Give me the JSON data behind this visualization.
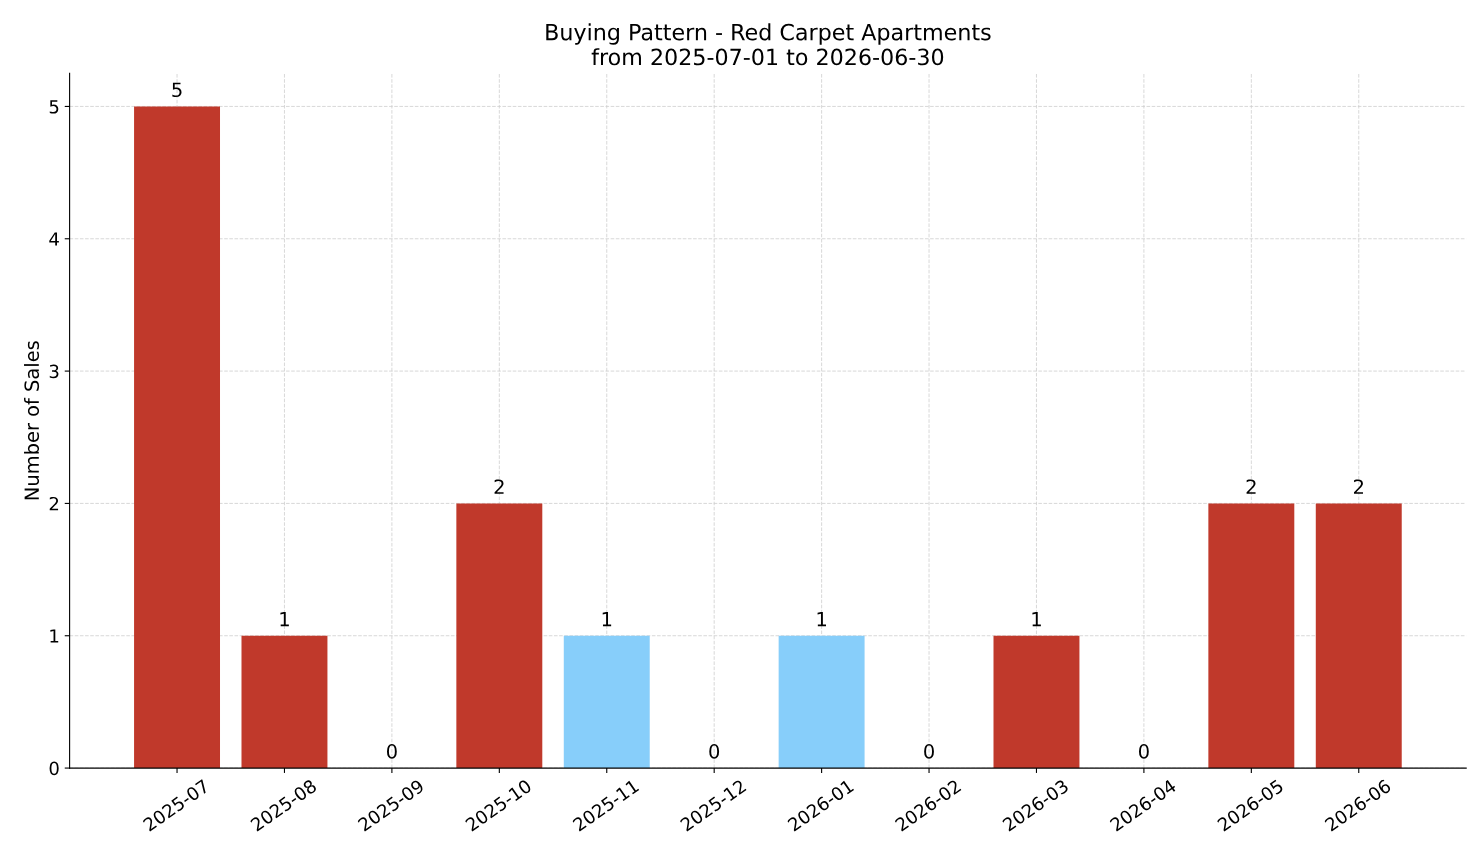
{
  "chart_data": {
    "type": "bar",
    "title": "Buying Pattern - Red Carpet Apartments\nfrom 2025-07-01 to 2026-06-30",
    "ylabel": "Number of Sales",
    "categories": [
      "2025-07",
      "2025-08",
      "2025-09",
      "2025-10",
      "2025-11",
      "2025-12",
      "2026-01",
      "2026-02",
      "2026-03",
      "2026-04",
      "2026-05",
      "2026-06"
    ],
    "values": [
      5,
      1,
      0,
      2,
      1,
      0,
      1,
      0,
      1,
      0,
      2,
      2
    ],
    "colors": [
      "#c0392b",
      "#c0392b",
      "#c0392b",
      "#c0392b",
      "#87cefa",
      "#c0392b",
      "#87cefa",
      "#c0392b",
      "#c0392b",
      "#c0392b",
      "#c0392b",
      "#c0392b"
    ],
    "ylim": [
      0,
      5.25
    ],
    "yticks": [
      0,
      1,
      2,
      3,
      4,
      5
    ],
    "grid": true,
    "data_labels": true
  }
}
